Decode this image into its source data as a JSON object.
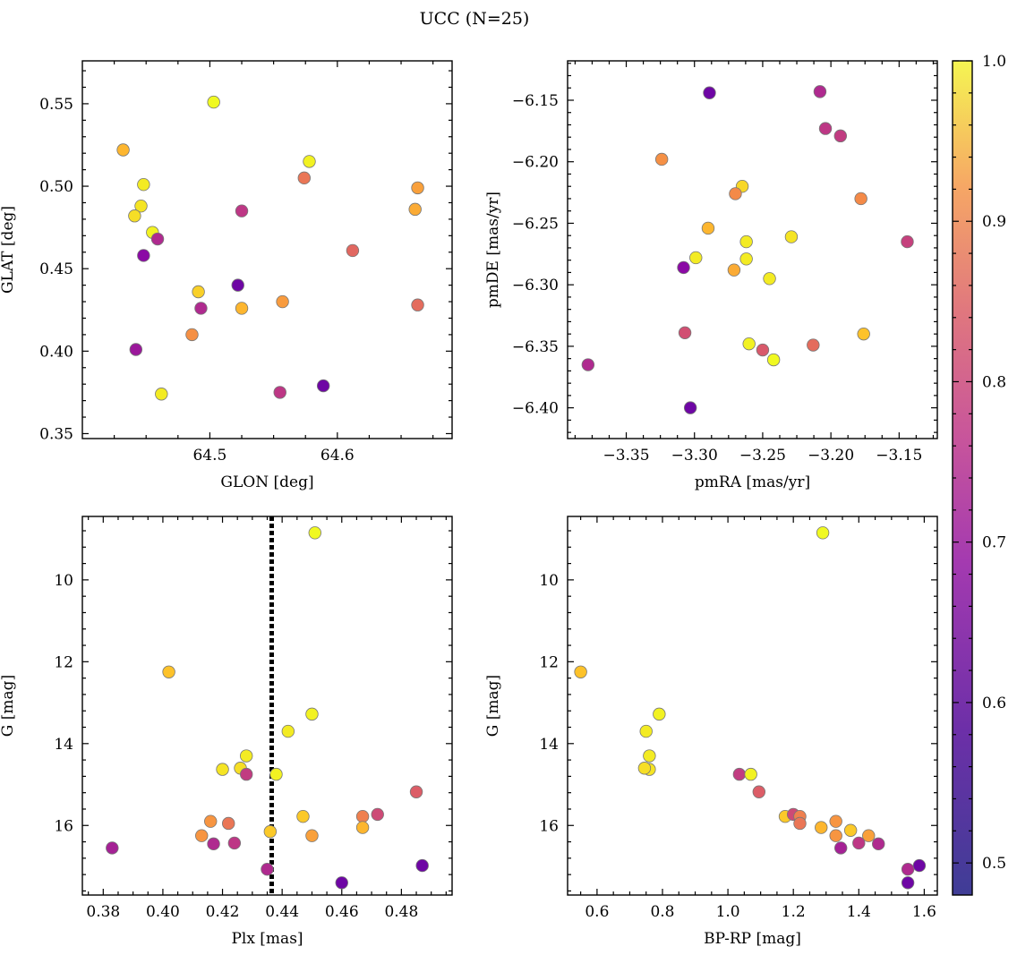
{
  "title": "UCC (N=25)",
  "colorbar": {
    "min": 0.48,
    "max": 1.0,
    "ticks": [
      0.5,
      0.6,
      0.7,
      0.8,
      0.9,
      1.0
    ],
    "tick_labels": [
      "0.5",
      "0.6",
      "0.7",
      "0.8",
      "0.9",
      "1.0"
    ],
    "colormap": "plasma"
  },
  "chart_data": [
    {
      "type": "scatter",
      "xlabel": "GLON [deg]",
      "ylabel": "GLAT [deg]",
      "xlim": [
        64.4,
        64.69
      ],
      "ylim": [
        0.347,
        0.576
      ],
      "x_ticks": [
        64.5,
        64.6
      ],
      "x_tick_labels": [
        "64.5",
        "64.6"
      ],
      "y_ticks": [
        0.35,
        0.4,
        0.45,
        0.5,
        0.55
      ],
      "y_tick_labels": [
        "0.35",
        "0.40",
        "0.45",
        "0.50",
        "0.55"
      ],
      "invert_y": false,
      "points": [
        {
          "x": 64.432,
          "y": 0.522,
          "c": 0.9
        },
        {
          "x": 64.503,
          "y": 0.551,
          "c": 1.0
        },
        {
          "x": 64.448,
          "y": 0.501,
          "c": 0.98
        },
        {
          "x": 64.446,
          "y": 0.488,
          "c": 0.97
        },
        {
          "x": 64.441,
          "y": 0.482,
          "c": 0.96
        },
        {
          "x": 64.455,
          "y": 0.472,
          "c": 0.99
        },
        {
          "x": 64.459,
          "y": 0.468,
          "c": 0.62
        },
        {
          "x": 64.448,
          "y": 0.458,
          "c": 0.55
        },
        {
          "x": 64.442,
          "y": 0.401,
          "c": 0.58
        },
        {
          "x": 64.462,
          "y": 0.374,
          "c": 0.98
        },
        {
          "x": 64.491,
          "y": 0.436,
          "c": 0.94
        },
        {
          "x": 64.493,
          "y": 0.426,
          "c": 0.62
        },
        {
          "x": 64.486,
          "y": 0.41,
          "c": 0.83
        },
        {
          "x": 64.522,
          "y": 0.44,
          "c": 0.5
        },
        {
          "x": 64.525,
          "y": 0.485,
          "c": 0.65
        },
        {
          "x": 64.525,
          "y": 0.426,
          "c": 0.9
        },
        {
          "x": 64.557,
          "y": 0.43,
          "c": 0.85
        },
        {
          "x": 64.555,
          "y": 0.375,
          "c": 0.65
        },
        {
          "x": 64.574,
          "y": 0.505,
          "c": 0.78
        },
        {
          "x": 64.578,
          "y": 0.515,
          "c": 0.99
        },
        {
          "x": 64.589,
          "y": 0.379,
          "c": 0.5
        },
        {
          "x": 64.612,
          "y": 0.461,
          "c": 0.75
        },
        {
          "x": 64.663,
          "y": 0.499,
          "c": 0.86
        },
        {
          "x": 64.661,
          "y": 0.486,
          "c": 0.88
        },
        {
          "x": 64.663,
          "y": 0.428,
          "c": 0.76
        }
      ]
    },
    {
      "type": "scatter",
      "xlabel": "pmRA [mas/yr]",
      "ylabel": "pmDE [mas/yr]",
      "xlim": [
        -3.393,
        -3.122
      ],
      "ylim": [
        -6.425,
        -6.118
      ],
      "x_ticks": [
        -3.35,
        -3.3,
        -3.25,
        -3.2,
        -3.15
      ],
      "x_tick_labels": [
        "−3.35",
        "−3.30",
        "−3.25",
        "−3.20",
        "−3.15"
      ],
      "y_ticks": [
        -6.4,
        -6.35,
        -6.3,
        -6.25,
        -6.2,
        -6.15
      ],
      "y_tick_labels": [
        "−6.40",
        "−6.35",
        "−6.30",
        "−6.25",
        "−6.20",
        "−6.15"
      ],
      "invert_y": false,
      "points": [
        {
          "x": -3.289,
          "y": -6.144,
          "c": 0.5
        },
        {
          "x": -3.208,
          "y": -6.143,
          "c": 0.62
        },
        {
          "x": -3.204,
          "y": -6.173,
          "c": 0.65
        },
        {
          "x": -3.193,
          "y": -6.179,
          "c": 0.66
        },
        {
          "x": -3.324,
          "y": -6.198,
          "c": 0.83
        },
        {
          "x": -3.265,
          "y": -6.22,
          "c": 0.95
        },
        {
          "x": -3.27,
          "y": -6.226,
          "c": 0.82
        },
        {
          "x": -3.178,
          "y": -6.23,
          "c": 0.82
        },
        {
          "x": -3.29,
          "y": -6.254,
          "c": 0.9
        },
        {
          "x": -3.262,
          "y": -6.265,
          "c": 0.98
        },
        {
          "x": -3.229,
          "y": -6.261,
          "c": 0.97
        },
        {
          "x": -3.144,
          "y": -6.265,
          "c": 0.67
        },
        {
          "x": -3.299,
          "y": -6.278,
          "c": 0.98
        },
        {
          "x": -3.262,
          "y": -6.279,
          "c": 0.98
        },
        {
          "x": -3.308,
          "y": -6.286,
          "c": 0.55
        },
        {
          "x": -3.271,
          "y": -6.288,
          "c": 0.88
        },
        {
          "x": -3.245,
          "y": -6.295,
          "c": 0.98
        },
        {
          "x": -3.307,
          "y": -6.339,
          "c": 0.7
        },
        {
          "x": -3.176,
          "y": -6.34,
          "c": 0.92
        },
        {
          "x": -3.26,
          "y": -6.348,
          "c": 0.99
        },
        {
          "x": -3.213,
          "y": -6.349,
          "c": 0.76
        },
        {
          "x": -3.25,
          "y": -6.353,
          "c": 0.72
        },
        {
          "x": -3.242,
          "y": -6.361,
          "c": 1.0
        },
        {
          "x": -3.378,
          "y": -6.365,
          "c": 0.62
        },
        {
          "x": -3.303,
          "y": -6.4,
          "c": 0.5
        }
      ]
    },
    {
      "type": "scatter",
      "xlabel": "Plx [mas]",
      "ylabel": "G [mag]",
      "xlim": [
        0.373,
        0.497
      ],
      "ylim": [
        8.45,
        17.7
      ],
      "x_ticks": [
        0.38,
        0.4,
        0.42,
        0.44,
        0.46,
        0.48
      ],
      "x_tick_labels": [
        "0.38",
        "0.40",
        "0.42",
        "0.44",
        "0.46",
        "0.48"
      ],
      "y_ticks": [
        10,
        12,
        14,
        16
      ],
      "y_tick_labels": [
        "10",
        "12",
        "14",
        "16"
      ],
      "invert_y": true,
      "vline": {
        "x": 0.4365
      },
      "points": [
        {
          "x": 0.451,
          "y": 8.85,
          "c": 1.0
        },
        {
          "x": 0.402,
          "y": 12.25,
          "c": 0.92
        },
        {
          "x": 0.45,
          "y": 13.28,
          "c": 0.99
        },
        {
          "x": 0.442,
          "y": 13.7,
          "c": 0.98
        },
        {
          "x": 0.428,
          "y": 14.3,
          "c": 0.98
        },
        {
          "x": 0.42,
          "y": 14.63,
          "c": 0.97
        },
        {
          "x": 0.426,
          "y": 14.6,
          "c": 0.96
        },
        {
          "x": 0.428,
          "y": 14.75,
          "c": 0.66
        },
        {
          "x": 0.438,
          "y": 14.75,
          "c": 0.99
        },
        {
          "x": 0.485,
          "y": 15.18,
          "c": 0.73
        },
        {
          "x": 0.447,
          "y": 15.78,
          "c": 0.93
        },
        {
          "x": 0.467,
          "y": 15.78,
          "c": 0.8
        },
        {
          "x": 0.472,
          "y": 15.73,
          "c": 0.69
        },
        {
          "x": 0.416,
          "y": 15.9,
          "c": 0.84
        },
        {
          "x": 0.422,
          "y": 15.95,
          "c": 0.78
        },
        {
          "x": 0.467,
          "y": 16.05,
          "c": 0.9
        },
        {
          "x": 0.436,
          "y": 16.15,
          "c": 0.93
        },
        {
          "x": 0.413,
          "y": 16.25,
          "c": 0.84
        },
        {
          "x": 0.45,
          "y": 16.25,
          "c": 0.86
        },
        {
          "x": 0.417,
          "y": 16.45,
          "c": 0.62
        },
        {
          "x": 0.424,
          "y": 16.43,
          "c": 0.65
        },
        {
          "x": 0.383,
          "y": 16.55,
          "c": 0.6
        },
        {
          "x": 0.435,
          "y": 17.07,
          "c": 0.62
        },
        {
          "x": 0.487,
          "y": 16.98,
          "c": 0.5
        },
        {
          "x": 0.46,
          "y": 17.4,
          "c": 0.5
        }
      ]
    },
    {
      "type": "scatter",
      "xlabel": "BP-RP [mag]",
      "ylabel": "G [mag]",
      "xlim": [
        0.51,
        1.64
      ],
      "ylim": [
        8.45,
        17.7
      ],
      "x_ticks": [
        0.6,
        0.8,
        1.0,
        1.2,
        1.4,
        1.6
      ],
      "x_tick_labels": [
        "0.6",
        "0.8",
        "1.0",
        "1.2",
        "1.4",
        "1.6"
      ],
      "y_ticks": [
        10,
        12,
        14,
        16
      ],
      "y_tick_labels": [
        "10",
        "12",
        "14",
        "16"
      ],
      "invert_y": true,
      "points": [
        {
          "x": 1.29,
          "y": 8.85,
          "c": 1.0
        },
        {
          "x": 0.55,
          "y": 12.25,
          "c": 0.92
        },
        {
          "x": 0.79,
          "y": 13.28,
          "c": 0.99
        },
        {
          "x": 0.75,
          "y": 13.7,
          "c": 0.98
        },
        {
          "x": 0.76,
          "y": 14.3,
          "c": 0.98
        },
        {
          "x": 0.76,
          "y": 14.63,
          "c": 0.97
        },
        {
          "x": 0.745,
          "y": 14.6,
          "c": 0.96
        },
        {
          "x": 1.035,
          "y": 14.75,
          "c": 0.66
        },
        {
          "x": 1.07,
          "y": 14.75,
          "c": 0.99
        },
        {
          "x": 1.095,
          "y": 15.18,
          "c": 0.73
        },
        {
          "x": 1.175,
          "y": 15.78,
          "c": 0.93
        },
        {
          "x": 1.2,
          "y": 15.73,
          "c": 0.69
        },
        {
          "x": 1.22,
          "y": 15.78,
          "c": 0.8
        },
        {
          "x": 1.22,
          "y": 15.95,
          "c": 0.78
        },
        {
          "x": 1.33,
          "y": 15.9,
          "c": 0.84
        },
        {
          "x": 1.285,
          "y": 16.05,
          "c": 0.9
        },
        {
          "x": 1.375,
          "y": 16.12,
          "c": 0.93
        },
        {
          "x": 1.33,
          "y": 16.25,
          "c": 0.84
        },
        {
          "x": 1.43,
          "y": 16.25,
          "c": 0.86
        },
        {
          "x": 1.4,
          "y": 16.43,
          "c": 0.65
        },
        {
          "x": 1.46,
          "y": 16.45,
          "c": 0.62
        },
        {
          "x": 1.345,
          "y": 16.55,
          "c": 0.6
        },
        {
          "x": 1.55,
          "y": 17.07,
          "c": 0.62
        },
        {
          "x": 1.585,
          "y": 16.98,
          "c": 0.5
        },
        {
          "x": 1.55,
          "y": 17.4,
          "c": 0.5
        }
      ]
    }
  ]
}
